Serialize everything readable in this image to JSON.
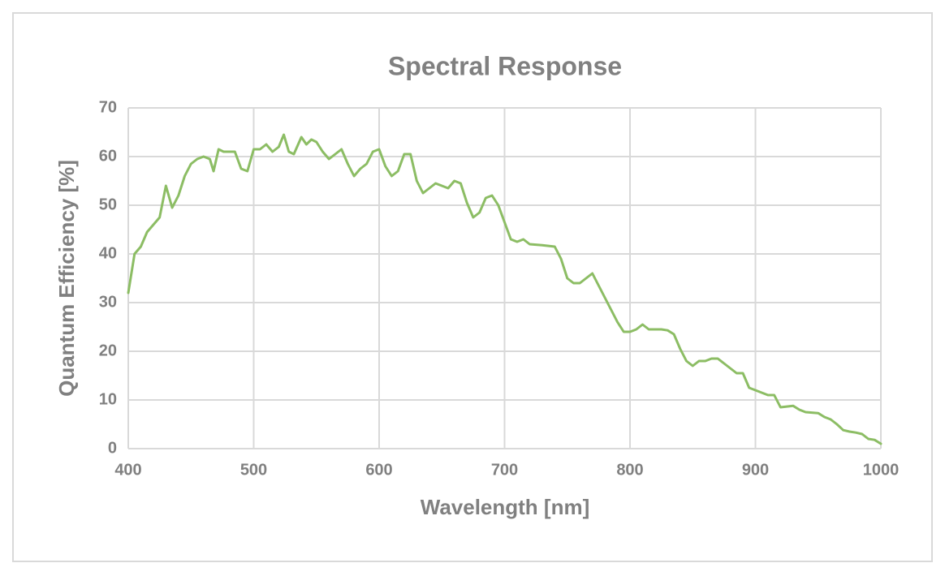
{
  "chart_data": {
    "type": "line",
    "title": "Spectral Response",
    "x_label": "Wavelength [nm]",
    "y_label": "Quantum Efficiency [%]",
    "xlim": [
      400,
      1000
    ],
    "xticks": [
      400,
      500,
      600,
      700,
      800,
      900,
      1000
    ],
    "ylim": [
      0,
      70
    ],
    "yticks": [
      0,
      10,
      20,
      30,
      40,
      50,
      60,
      70
    ],
    "grid": true,
    "series": [
      {
        "name": "Quantum Efficiency",
        "color": "#8cbd64",
        "x": [
          400,
          405,
          410,
          415,
          420,
          425,
          430,
          435,
          440,
          445,
          450,
          455,
          460,
          465,
          468,
          472,
          476,
          480,
          485,
          490,
          495,
          500,
          505,
          510,
          515,
          520,
          524,
          528,
          532,
          538,
          542,
          546,
          550,
          555,
          560,
          565,
          570,
          575,
          580,
          585,
          590,
          595,
          600,
          605,
          610,
          615,
          620,
          625,
          630,
          635,
          640,
          645,
          650,
          655,
          660,
          665,
          670,
          675,
          680,
          685,
          690,
          695,
          700,
          705,
          710,
          715,
          720,
          730,
          740,
          745,
          750,
          755,
          760,
          765,
          770,
          775,
          780,
          785,
          790,
          795,
          800,
          805,
          810,
          815,
          820,
          825,
          830,
          835,
          840,
          845,
          850,
          855,
          860,
          865,
          870,
          875,
          880,
          885,
          890,
          895,
          900,
          905,
          910,
          915,
          920,
          930,
          935,
          940,
          950,
          955,
          960,
          965,
          970,
          975,
          980,
          985,
          990,
          995,
          1000
        ],
        "values": [
          32,
          40,
          41.5,
          44.5,
          46,
          47.5,
          54,
          49.5,
          52,
          56,
          58.5,
          59.5,
          60,
          59.5,
          57,
          61.5,
          61,
          61,
          61,
          57.5,
          57,
          61.5,
          61.5,
          62.5,
          61,
          62,
          64.5,
          61,
          60.5,
          64,
          62.5,
          63.5,
          63,
          61,
          59.5,
          60.5,
          61.5,
          58.5,
          56,
          57.5,
          58.5,
          61,
          61.5,
          58,
          56,
          57,
          60.5,
          60.5,
          55,
          52.5,
          53.5,
          54.5,
          54,
          53.5,
          55,
          54.5,
          50.5,
          47.5,
          48.5,
          51.5,
          52,
          50,
          46.5,
          43,
          42.5,
          43,
          42,
          41.8,
          41.5,
          39,
          35,
          34,
          34,
          35,
          36,
          33.5,
          31,
          28.5,
          26,
          24,
          24,
          24.5,
          25.5,
          24.5,
          24.5,
          24.5,
          24.3,
          23.5,
          20.5,
          18,
          17,
          18,
          18,
          18.5,
          18.5,
          17.5,
          16.5,
          15.5,
          15.5,
          12.5,
          12,
          11.5,
          11,
          11,
          8.5,
          8.8,
          8,
          7.5,
          7.3,
          6.5,
          6,
          5,
          3.8,
          3.5,
          3.3,
          3,
          2,
          1.8,
          1
        ]
      }
    ]
  }
}
